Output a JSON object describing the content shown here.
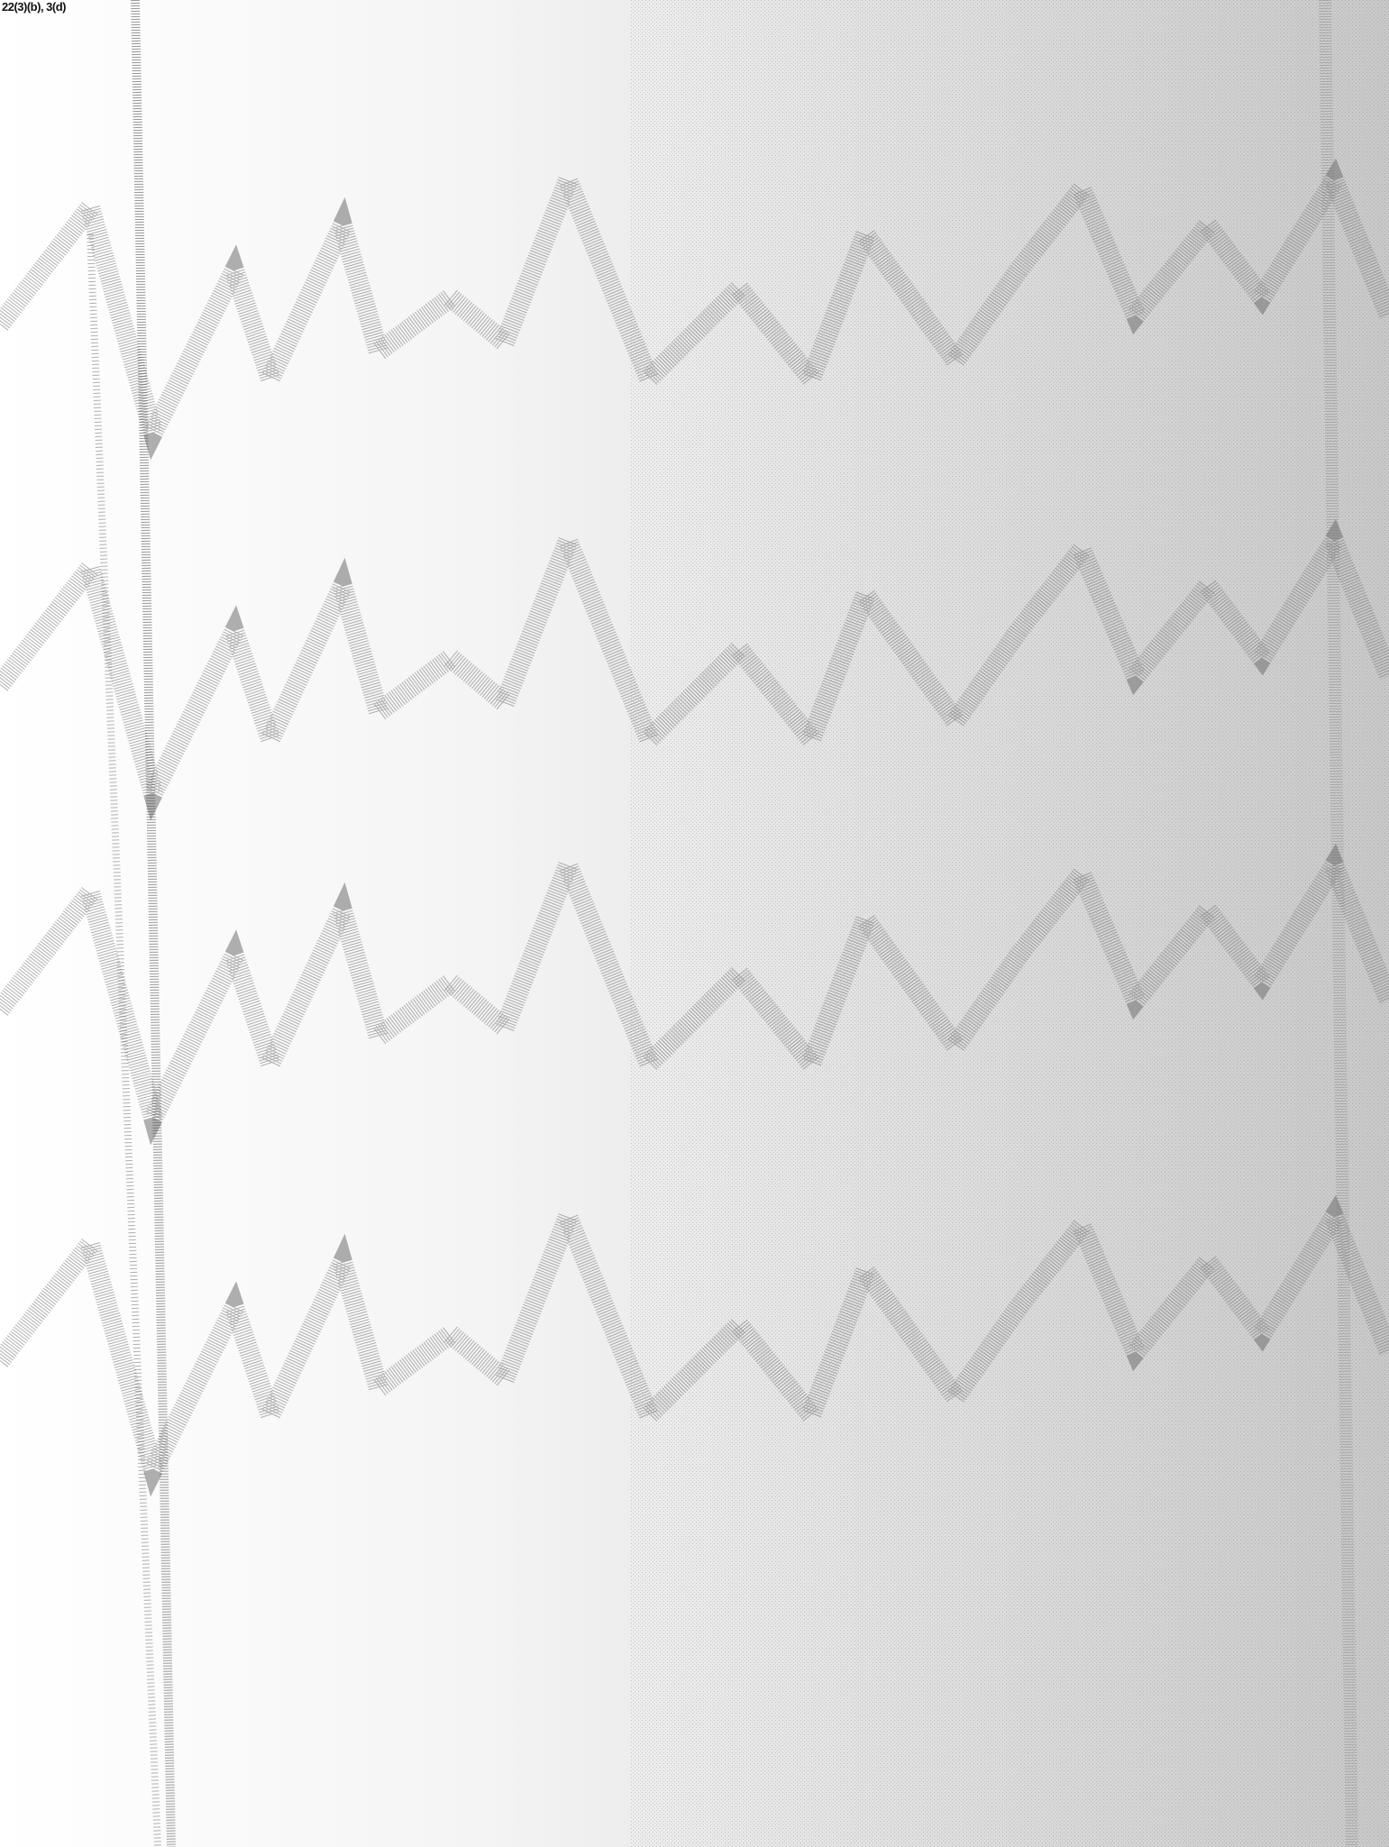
{
  "label": "22(3)(b), 3(d)"
}
